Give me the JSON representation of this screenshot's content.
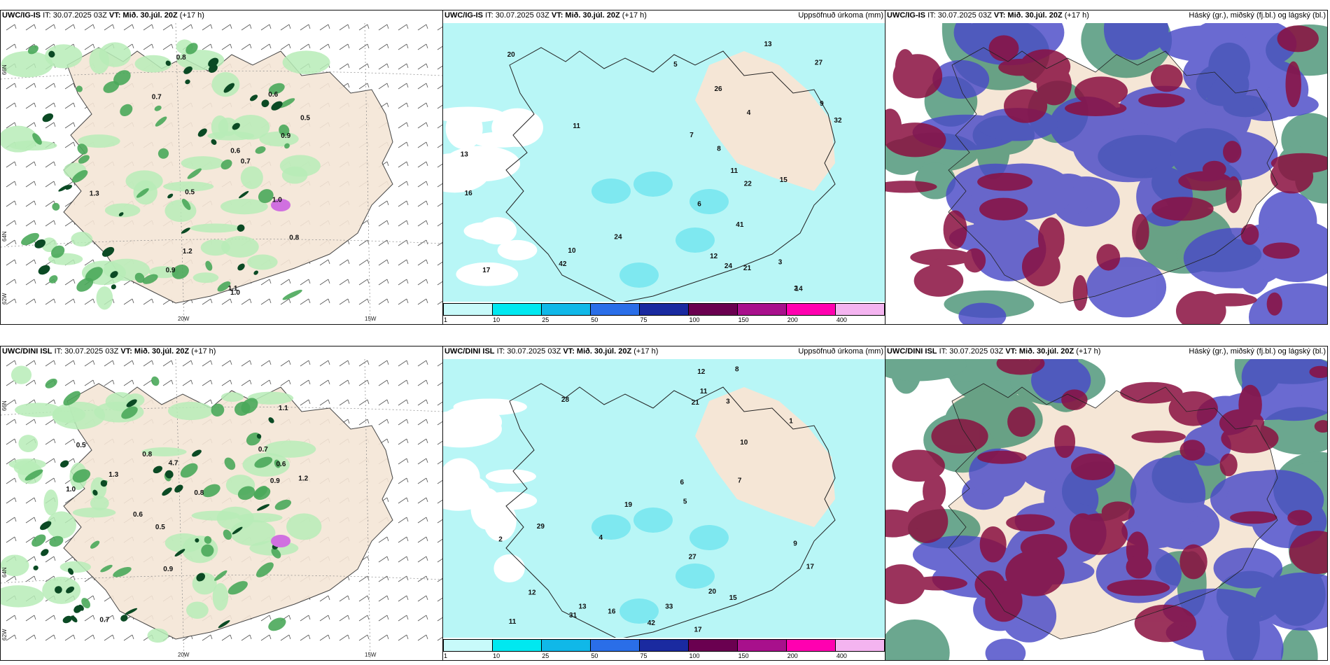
{
  "rows": [
    {
      "panels": [
        {
          "title_model": "UWC/IG-IS",
          "title_it": "IT: 30.07.2025 03Z",
          "title_vt_label": "VT:",
          "title_vt": "Mið. 30.júl. 20Z",
          "title_lead": "(+17 h)",
          "right_title": "",
          "type": "wind-precip",
          "labels": [
            "0.8",
            "1.0",
            "0.6",
            "0.9",
            "0.7",
            "1.1",
            "0.5",
            "1.3",
            "0.5",
            "0.9",
            "0.8",
            "0.6",
            "0.7",
            "1.0",
            "1.2"
          ]
        },
        {
          "title_model": "UWC/IG-IS",
          "title_it": "IT: 30.07.2025 03Z",
          "title_vt_label": "VT:",
          "title_vt": "Mið. 30.júl. 20Z",
          "title_lead": "(+17 h)",
          "right_title": "Uppsöfnuð úrkoma (mm)",
          "type": "accum",
          "labels": [
            "4",
            "5",
            "11",
            "13",
            "10",
            "9",
            "16",
            "14",
            "15",
            "20",
            "24",
            "41",
            "26",
            "17",
            "27",
            "32",
            "11",
            "13",
            "24",
            "22",
            "12",
            "42",
            "21",
            "3",
            "2",
            "6",
            "8",
            "7"
          ]
        },
        {
          "title_model": "UWC/IG-IS",
          "title_it": "IT: 30.07.2025 03Z",
          "title_vt_label": "VT:",
          "title_vt": "Mið. 30.júl. 20Z",
          "title_lead": "(+17 h)",
          "right_title": "Háský (gr.), miðský (fj.bl.) og lágský (bl.)",
          "type": "clouds",
          "labels": []
        }
      ]
    },
    {
      "panels": [
        {
          "title_model": "UWC/DINI ISL",
          "title_it": "IT: 30.07.2025 03Z",
          "title_vt_label": "VT:",
          "title_vt": "Mið. 30.júl. 20Z",
          "title_lead": "(+17 h)",
          "right_title": "",
          "type": "wind-precip",
          "labels": [
            "1.2",
            "0.5",
            "1.0",
            "0.6",
            "0.8",
            "0.9",
            "0.7",
            "1.1",
            "0.5",
            "0.6",
            "1.3",
            "4.7",
            "0.8",
            "0.9",
            "0.7"
          ]
        },
        {
          "title_model": "UWC/DINI ISL",
          "title_it": "IT: 30.07.2025 03Z",
          "title_vt_label": "VT:",
          "title_vt": "Mið. 30.júl. 20Z",
          "title_lead": "(+17 h)",
          "right_title": "Uppsöfnuð úrkoma (mm)",
          "type": "accum",
          "labels": [
            "13",
            "5",
            "17",
            "11",
            "21",
            "15",
            "16",
            "12",
            "11",
            "17",
            "12",
            "29",
            "33",
            "31",
            "28",
            "27",
            "42",
            "20",
            "19",
            "6",
            "3",
            "4",
            "9",
            "10",
            "7",
            "8",
            "2",
            "1"
          ]
        },
        {
          "title_model": "UWC/DINI ISL",
          "title_it": "IT: 30.07.2025 03Z",
          "title_vt_label": "VT:",
          "title_vt": "Mið. 30.júl. 20Z",
          "title_lead": "(+17 h)",
          "right_title": "Háský (gr.), miðský (fj.bl.) og lágský (bl.)",
          "type": "clouds",
          "labels": []
        }
      ]
    }
  ],
  "axes": {
    "lon_labels": [
      "20W",
      "15W"
    ],
    "lat_labels": [
      "66N",
      "64N",
      "62W"
    ]
  },
  "legend": {
    "ticks": [
      "1",
      "10",
      "25",
      "50",
      "75",
      "100",
      "150",
      "200",
      "400"
    ],
    "colors": [
      "#c8fafa",
      "#00e8f0",
      "#10b8e8",
      "#2a6ee8",
      "#1a2aa0",
      "#6a0050",
      "#a8108c",
      "#ff00b0",
      "#f4b4f0"
    ]
  },
  "colors": {
    "land": "#f5e6d6",
    "accum_fill": "#b8f6f6",
    "accum_mid": "#7ee8f0",
    "precip_light": "#b7ecb7",
    "precip_mid": "#4aa85a",
    "precip_dark": "#0b4a24",
    "cloud_high": "#8a1040",
    "cloud_mid": "#4a4ac8",
    "cloud_low": "#3a8a6a"
  }
}
